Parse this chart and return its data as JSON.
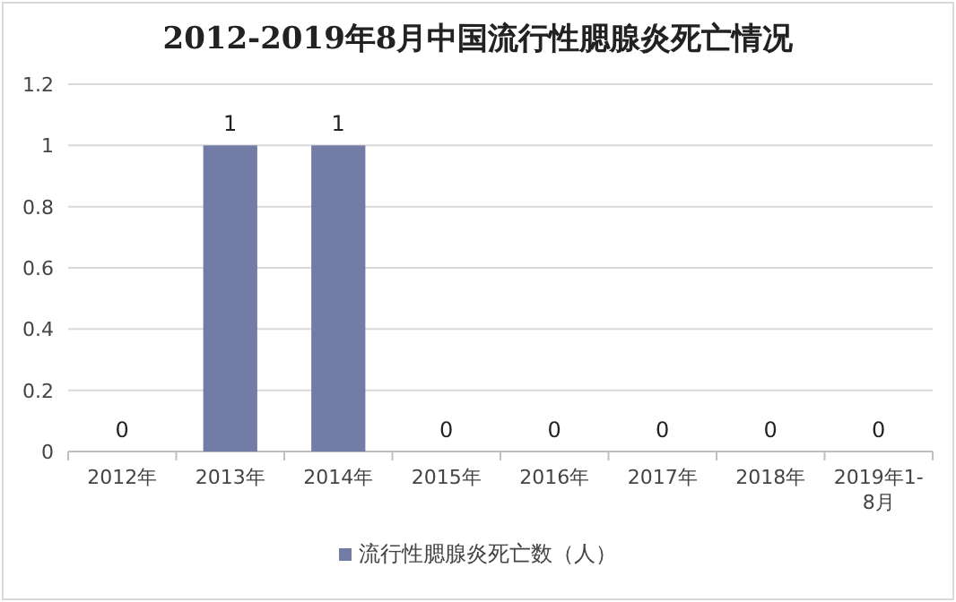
{
  "chart_data": {
    "type": "bar",
    "title": "2012-2019年8月中国流行性腮腺炎死亡情况",
    "categories": [
      "2012年",
      "2013年",
      "2014年",
      "2015年",
      "2016年",
      "2017年",
      "2018年",
      "2019年1-8月"
    ],
    "series": [
      {
        "name": "流行性腮腺炎死亡数（人）",
        "color": "#737ca5",
        "values": [
          0,
          1,
          1,
          0,
          0,
          0,
          0,
          0
        ]
      }
    ],
    "ylim": [
      0,
      1.2
    ],
    "yticks": [
      0,
      0.2,
      0.4,
      0.6,
      0.8,
      1,
      1.2
    ],
    "grid": "y",
    "legend": "bottom",
    "data_labels": true
  }
}
